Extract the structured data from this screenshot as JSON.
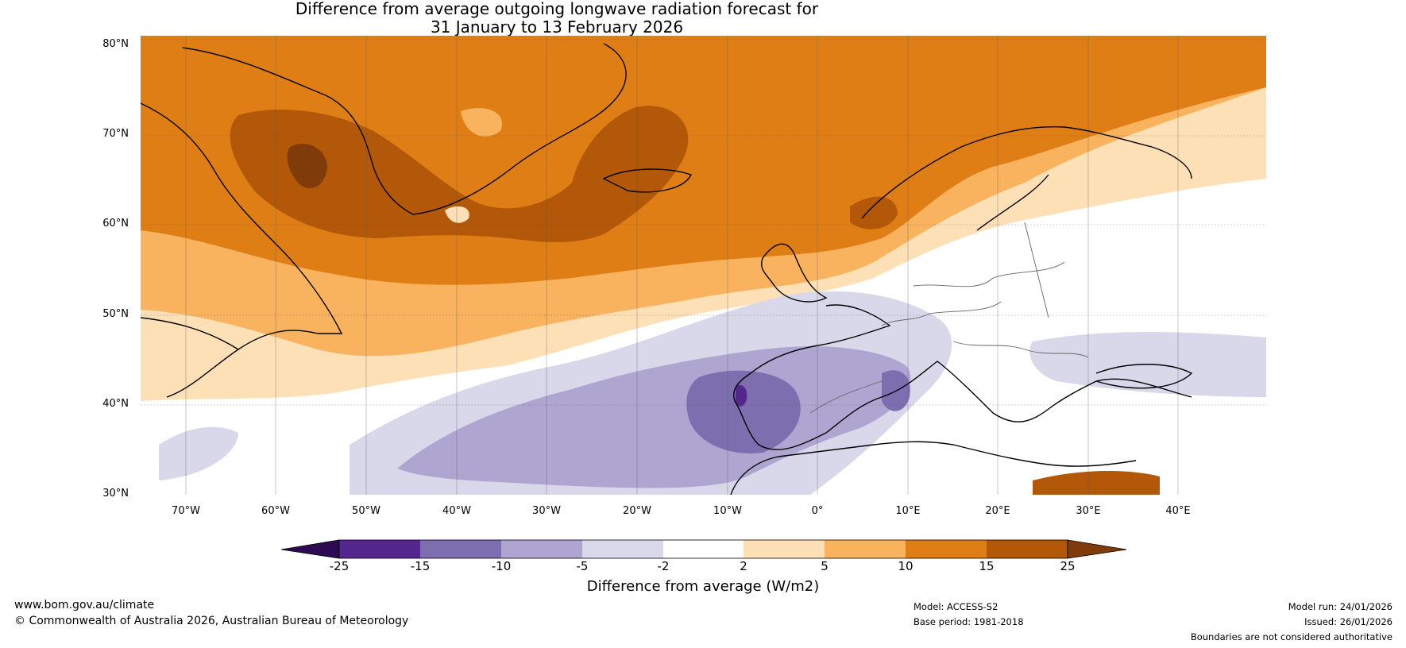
{
  "title_line1": "Difference from average outgoing longwave radiation forecast for",
  "title_line2": "31 January to 13 February 2026",
  "lat_labels": [
    "80°N",
    "70°N",
    "60°N",
    "50°N",
    "40°N",
    "30°N"
  ],
  "lon_labels": [
    "70°W",
    "60°W",
    "50°W",
    "40°W",
    "30°W",
    "20°W",
    "10°W",
    "0°",
    "10°E",
    "20°E",
    "30°E",
    "40°E"
  ],
  "colorbar": {
    "ticks": [
      "-25",
      "-15",
      "-10",
      "-5",
      "-2",
      "2",
      "5",
      "10",
      "15",
      "25"
    ],
    "label": "Difference from average (W/m2)",
    "colors": [
      "#2d0a52",
      "#54278f",
      "#7d6eb0",
      "#aea6d1",
      "#d8d8ea",
      "#ffffff",
      "#fde0b6",
      "#f9b25e",
      "#e07e16",
      "#b25808",
      "#7f3c0a"
    ]
  },
  "footer": {
    "website": "www.bom.gov.au/climate",
    "copyright": "© Commonwealth of Australia 2026, Australian Bureau of Meteorology",
    "model": "Model: ACCESS-S2",
    "base_period": "Base period: 1981-2018",
    "model_run": "Model run: 24/01/2026",
    "issued": "Issued: 26/01/2026",
    "disclaimer": "Boundaries are not considered authoritative"
  }
}
